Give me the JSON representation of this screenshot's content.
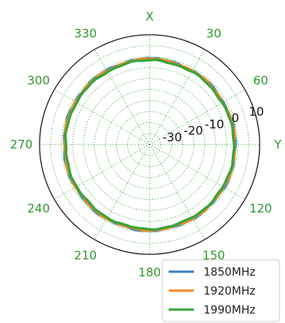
{
  "chart_data": {
    "type": "polar-line",
    "angle_axis_labels": {
      "top": "X",
      "right": "Y"
    },
    "angle_ticks": [
      {
        "deg": 30,
        "label": "30"
      },
      {
        "deg": 60,
        "label": "60"
      },
      {
        "deg": 120,
        "label": "120"
      },
      {
        "deg": 150,
        "label": "150"
      },
      {
        "deg": 180,
        "label": "180"
      },
      {
        "deg": 210,
        "label": "210"
      },
      {
        "deg": 240,
        "label": "240"
      },
      {
        "deg": 270,
        "label": "270"
      },
      {
        "deg": 300,
        "label": "300"
      },
      {
        "deg": 330,
        "label": "330"
      }
    ],
    "radial_ticks": [
      {
        "value": -30,
        "label": "-30"
      },
      {
        "value": -20,
        "label": "-20"
      },
      {
        "value": -10,
        "label": "-10"
      },
      {
        "value": 0,
        "label": "0"
      },
      {
        "value": 10,
        "label": "10"
      }
    ],
    "rlim": [
      -40,
      10
    ],
    "grid": true,
    "legend_position": "bottom-right",
    "series": [
      {
        "name": "1850MHz",
        "color": "#3d7fc0",
        "angles": [
          0,
          30,
          60,
          90,
          120,
          150,
          180,
          210,
          240,
          270,
          300,
          330
        ],
        "values": [
          -0.9,
          -1.1,
          -1.3,
          -1.0,
          -0.9,
          -1.0,
          -0.8,
          -0.9,
          -1.0,
          -1.1,
          -0.9,
          -1.0
        ]
      },
      {
        "name": "1920MHz",
        "color": "#f28c28",
        "angles": [
          0,
          30,
          60,
          90,
          120,
          150,
          180,
          210,
          240,
          270,
          300,
          330
        ],
        "values": [
          -1.1,
          -1.2,
          -1.5,
          -1.2,
          -1.1,
          -1.1,
          -1.0,
          -1.1,
          -1.2,
          -1.3,
          -1.1,
          -1.2
        ]
      },
      {
        "name": "1990MHz",
        "color": "#3aa33a",
        "angles": [
          0,
          30,
          60,
          90,
          120,
          150,
          180,
          210,
          240,
          270,
          300,
          330
        ],
        "values": [
          -1.6,
          -1.7,
          -1.9,
          -1.6,
          -1.5,
          -1.6,
          -1.5,
          -1.6,
          -1.7,
          -1.8,
          -1.6,
          -1.7
        ]
      }
    ]
  }
}
